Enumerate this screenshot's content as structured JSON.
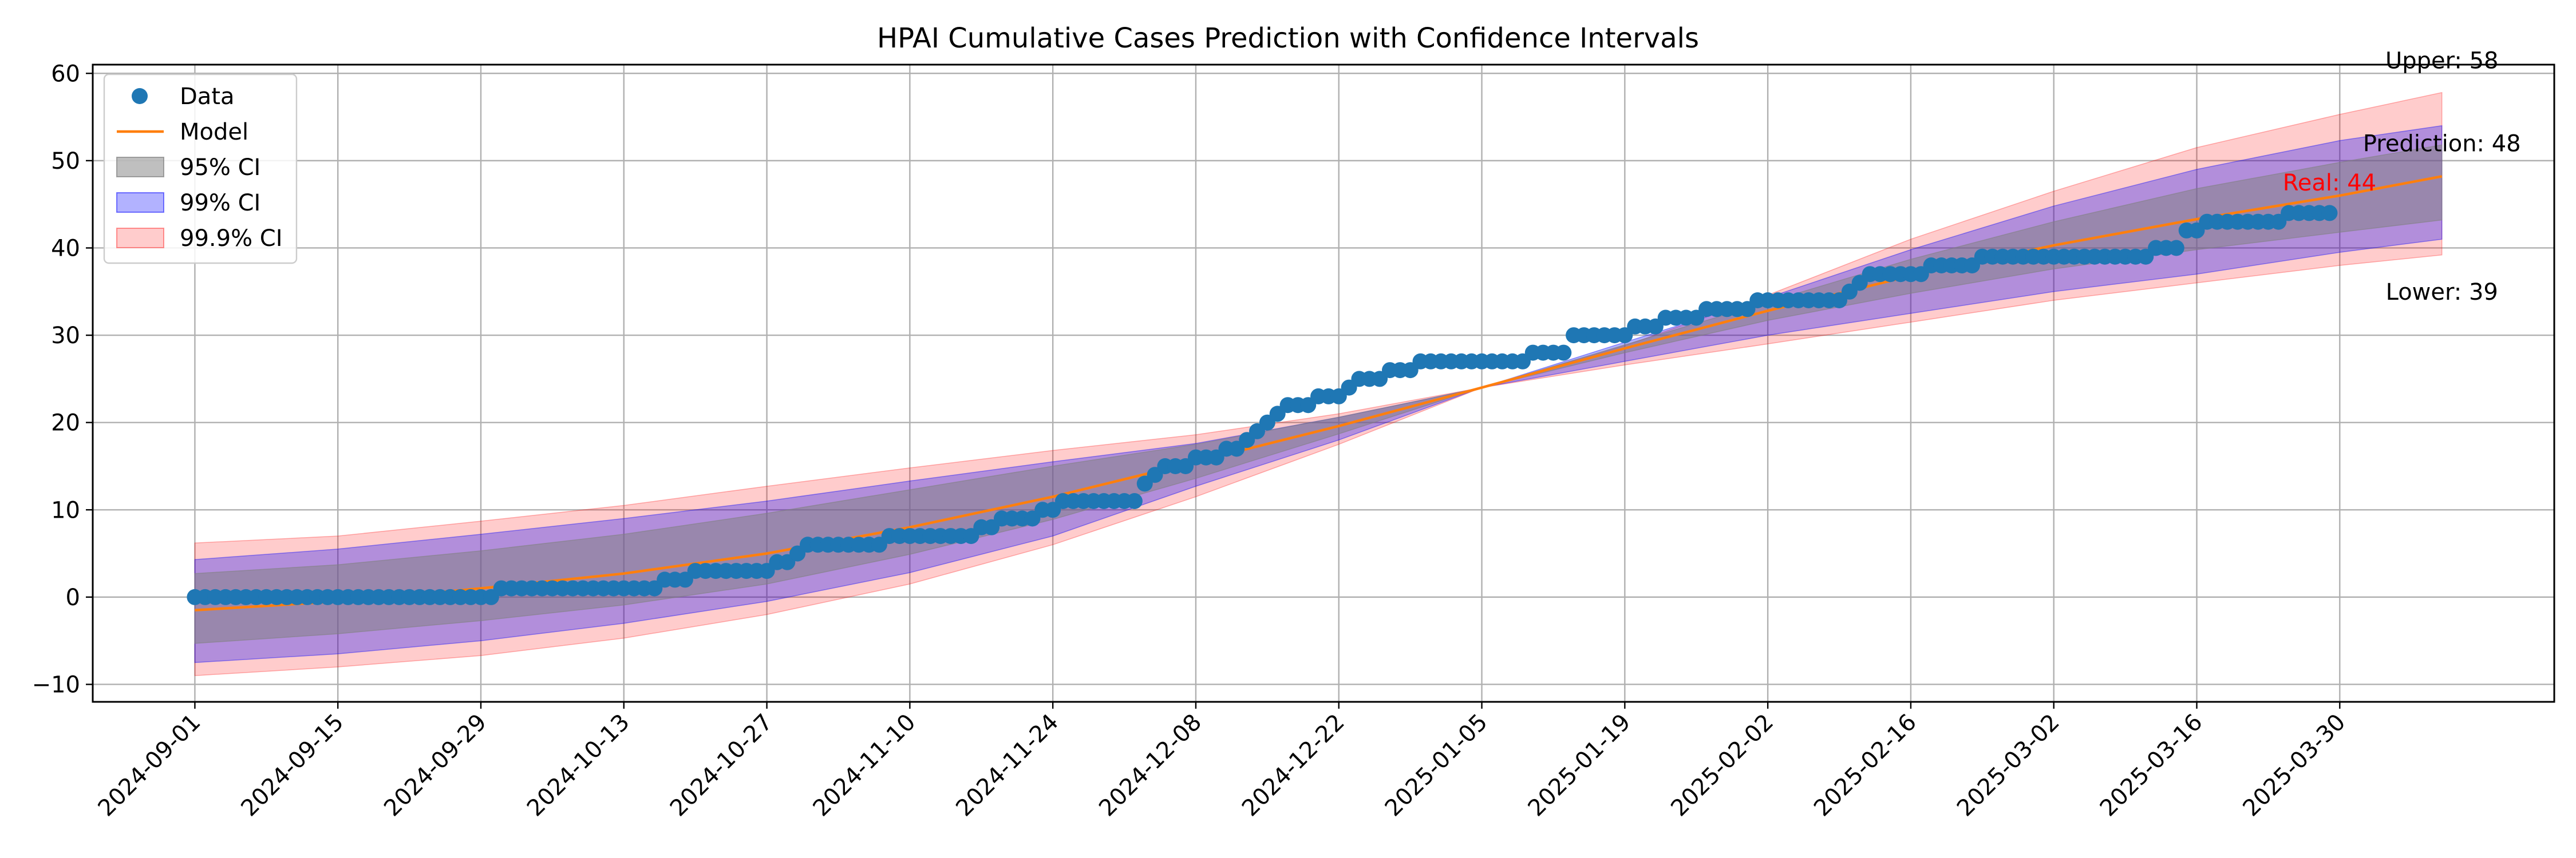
{
  "chart_data": {
    "type": "line",
    "title": "HPAI Cumulative Cases Prediction with Confidence Intervals",
    "xlabel": "",
    "ylabel": "",
    "x_start": "2024-09-01",
    "x_end": "2025-04-09",
    "xlim": [
      "2024-08-22",
      "2025-04-20"
    ],
    "ylim": [
      -12,
      61
    ],
    "grid": true,
    "legend_position": "upper-left",
    "x_ticks": [
      "2024-09-01",
      "2024-09-15",
      "2024-09-29",
      "2024-10-13",
      "2024-10-27",
      "2024-11-10",
      "2024-11-24",
      "2024-12-08",
      "2024-12-22",
      "2025-01-05",
      "2025-01-19",
      "2025-02-02",
      "2025-02-16",
      "2025-03-02",
      "2025-03-16",
      "2025-03-30"
    ],
    "y_ticks": [
      -10,
      0,
      10,
      20,
      30,
      40,
      50,
      60
    ],
    "legend": [
      {
        "label": "Data",
        "kind": "marker",
        "color": "#1f77b4"
      },
      {
        "label": "Model",
        "kind": "line",
        "color": "#ff7f0e"
      },
      {
        "label": "95% CI",
        "kind": "fill",
        "color": "#808080",
        "opacity": 0.5
      },
      {
        "label": "99% CI",
        "kind": "fill",
        "color": "#0000ff",
        "opacity": 0.3
      },
      {
        "label": "99.9% CI",
        "kind": "fill",
        "color": "#ff0000",
        "opacity": 0.2
      }
    ],
    "model_points": [
      {
        "x": "2024-09-01",
        "y": -1.5
      },
      {
        "x": "2024-09-15",
        "y": -0.5
      },
      {
        "x": "2024-09-29",
        "y": 1.0
      },
      {
        "x": "2024-10-13",
        "y": 2.7
      },
      {
        "x": "2024-10-27",
        "y": 5.0
      },
      {
        "x": "2024-11-10",
        "y": 8.0
      },
      {
        "x": "2024-11-24",
        "y": 11.5
      },
      {
        "x": "2024-12-08",
        "y": 15.5
      },
      {
        "x": "2024-12-22",
        "y": 19.6
      },
      {
        "x": "2025-01-05",
        "y": 24.0
      },
      {
        "x": "2025-01-19",
        "y": 28.5
      },
      {
        "x": "2025-02-02",
        "y": 32.8
      },
      {
        "x": "2025-02-16",
        "y": 36.8
      },
      {
        "x": "2025-03-02",
        "y": 40.3
      },
      {
        "x": "2025-03-16",
        "y": 43.3
      },
      {
        "x": "2025-03-30",
        "y": 46.0
      },
      {
        "x": "2025-04-09",
        "y": 48.2
      }
    ],
    "ci_bands": [
      {
        "label": "99.9% CI",
        "upper": [
          6.2,
          7.0,
          8.7,
          10.5,
          12.7,
          14.8,
          16.8,
          18.6,
          21.0,
          24.0,
          28.8,
          34.6,
          41.0,
          46.5,
          51.5,
          55.3,
          57.8
        ],
        "lower": [
          -9.0,
          -8.0,
          -6.7,
          -4.7,
          -2.0,
          1.5,
          6.0,
          11.5,
          17.5,
          24.0,
          26.6,
          29.0,
          31.5,
          34.0,
          36.0,
          38.0,
          39.2
        ]
      },
      {
        "label": "99% CI",
        "upper": [
          4.3,
          5.5,
          7.2,
          9.0,
          11.0,
          13.3,
          15.5,
          17.6,
          20.6,
          24.0,
          29.2,
          34.3,
          39.8,
          44.8,
          49.0,
          52.3,
          54.0
        ],
        "lower": [
          -7.5,
          -6.5,
          -5.0,
          -3.0,
          -0.5,
          2.8,
          7.0,
          12.7,
          18.0,
          24.0,
          27.0,
          30.0,
          32.5,
          35.0,
          37.0,
          39.5,
          41.0
        ]
      },
      {
        "label": "95% CI",
        "upper": [
          2.7,
          3.7,
          5.3,
          7.2,
          9.6,
          12.3,
          15.0,
          17.5,
          20.6,
          24.0,
          28.9,
          33.8,
          38.7,
          43.0,
          46.8,
          49.8,
          51.8
        ],
        "lower": [
          -5.3,
          -4.2,
          -2.7,
          -0.9,
          1.5,
          4.9,
          8.9,
          13.6,
          18.7,
          24.0,
          28.0,
          31.7,
          34.8,
          37.6,
          39.8,
          41.8,
          43.2
        ]
      }
    ],
    "data_steps": [
      {
        "from": "2024-09-01",
        "to": "2024-09-30",
        "y": 0
      },
      {
        "from": "2024-10-01",
        "to": "2024-10-16",
        "y": 1
      },
      {
        "from": "2024-10-17",
        "to": "2024-10-19",
        "y": 2
      },
      {
        "from": "2024-10-20",
        "to": "2024-10-27",
        "y": 3
      },
      {
        "from": "2024-10-28",
        "to": "2024-10-29",
        "y": 4
      },
      {
        "from": "2024-10-30",
        "to": "2024-10-30",
        "y": 5
      },
      {
        "from": "2024-10-31",
        "to": "2024-11-07",
        "y": 6
      },
      {
        "from": "2024-11-08",
        "to": "2024-11-16",
        "y": 7
      },
      {
        "from": "2024-11-17",
        "to": "2024-11-18",
        "y": 8
      },
      {
        "from": "2024-11-19",
        "to": "2024-11-22",
        "y": 9
      },
      {
        "from": "2024-11-23",
        "to": "2024-11-24",
        "y": 10
      },
      {
        "from": "2024-11-25",
        "to": "2024-12-02",
        "y": 11
      },
      {
        "from": "2024-12-03",
        "to": "2024-12-03",
        "y": 13
      },
      {
        "from": "2024-12-04",
        "to": "2024-12-04",
        "y": 14
      },
      {
        "from": "2024-12-05",
        "to": "2024-12-07",
        "y": 15
      },
      {
        "from": "2024-12-08",
        "to": "2024-12-10",
        "y": 16
      },
      {
        "from": "2024-12-11",
        "to": "2024-12-12",
        "y": 17
      },
      {
        "from": "2024-12-13",
        "to": "2024-12-13",
        "y": 18
      },
      {
        "from": "2024-12-14",
        "to": "2024-12-14",
        "y": 19
      },
      {
        "from": "2024-12-15",
        "to": "2024-12-15",
        "y": 20
      },
      {
        "from": "2024-12-16",
        "to": "2024-12-16",
        "y": 21
      },
      {
        "from": "2024-12-17",
        "to": "2024-12-19",
        "y": 22
      },
      {
        "from": "2024-12-20",
        "to": "2024-12-22",
        "y": 23
      },
      {
        "from": "2024-12-23",
        "to": "2024-12-23",
        "y": 24
      },
      {
        "from": "2024-12-24",
        "to": "2024-12-26",
        "y": 25
      },
      {
        "from": "2024-12-27",
        "to": "2024-12-29",
        "y": 26
      },
      {
        "from": "2024-12-30",
        "to": "2025-01-09",
        "y": 27
      },
      {
        "from": "2025-01-10",
        "to": "2025-01-13",
        "y": 28
      },
      {
        "from": "2025-01-14",
        "to": "2025-01-19",
        "y": 30
      },
      {
        "from": "2025-01-20",
        "to": "2025-01-22",
        "y": 31
      },
      {
        "from": "2025-01-23",
        "to": "2025-01-26",
        "y": 32
      },
      {
        "from": "2025-01-27",
        "to": "2025-01-31",
        "y": 33
      },
      {
        "from": "2025-02-01",
        "to": "2025-02-09",
        "y": 34
      },
      {
        "from": "2025-02-10",
        "to": "2025-02-10",
        "y": 35
      },
      {
        "from": "2025-02-11",
        "to": "2025-02-11",
        "y": 36
      },
      {
        "from": "2025-02-12",
        "to": "2025-02-17",
        "y": 37
      },
      {
        "from": "2025-02-18",
        "to": "2025-02-22",
        "y": 38
      },
      {
        "from": "2025-02-23",
        "to": "2025-03-11",
        "y": 39
      },
      {
        "from": "2025-03-12",
        "to": "2025-03-14",
        "y": 40
      },
      {
        "from": "2025-03-15",
        "to": "2025-03-16",
        "y": 42
      },
      {
        "from": "2025-03-17",
        "to": "2025-03-24",
        "y": 43
      },
      {
        "from": "2025-03-25",
        "to": "2025-03-29",
        "y": 44
      }
    ],
    "annotations": [
      {
        "text": "Upper: 58",
        "x": "2025-04-09",
        "y": 61.5,
        "color": "#000000"
      },
      {
        "text": "Prediction: 48",
        "x": "2025-04-09",
        "y": 52.0,
        "color": "#000000"
      },
      {
        "text": "Real: 44",
        "x": "2025-03-29",
        "y": 47.5,
        "color": "#ff0000"
      },
      {
        "text": "Lower: 39",
        "x": "2025-04-09",
        "y": 35.0,
        "color": "#000000"
      }
    ]
  }
}
